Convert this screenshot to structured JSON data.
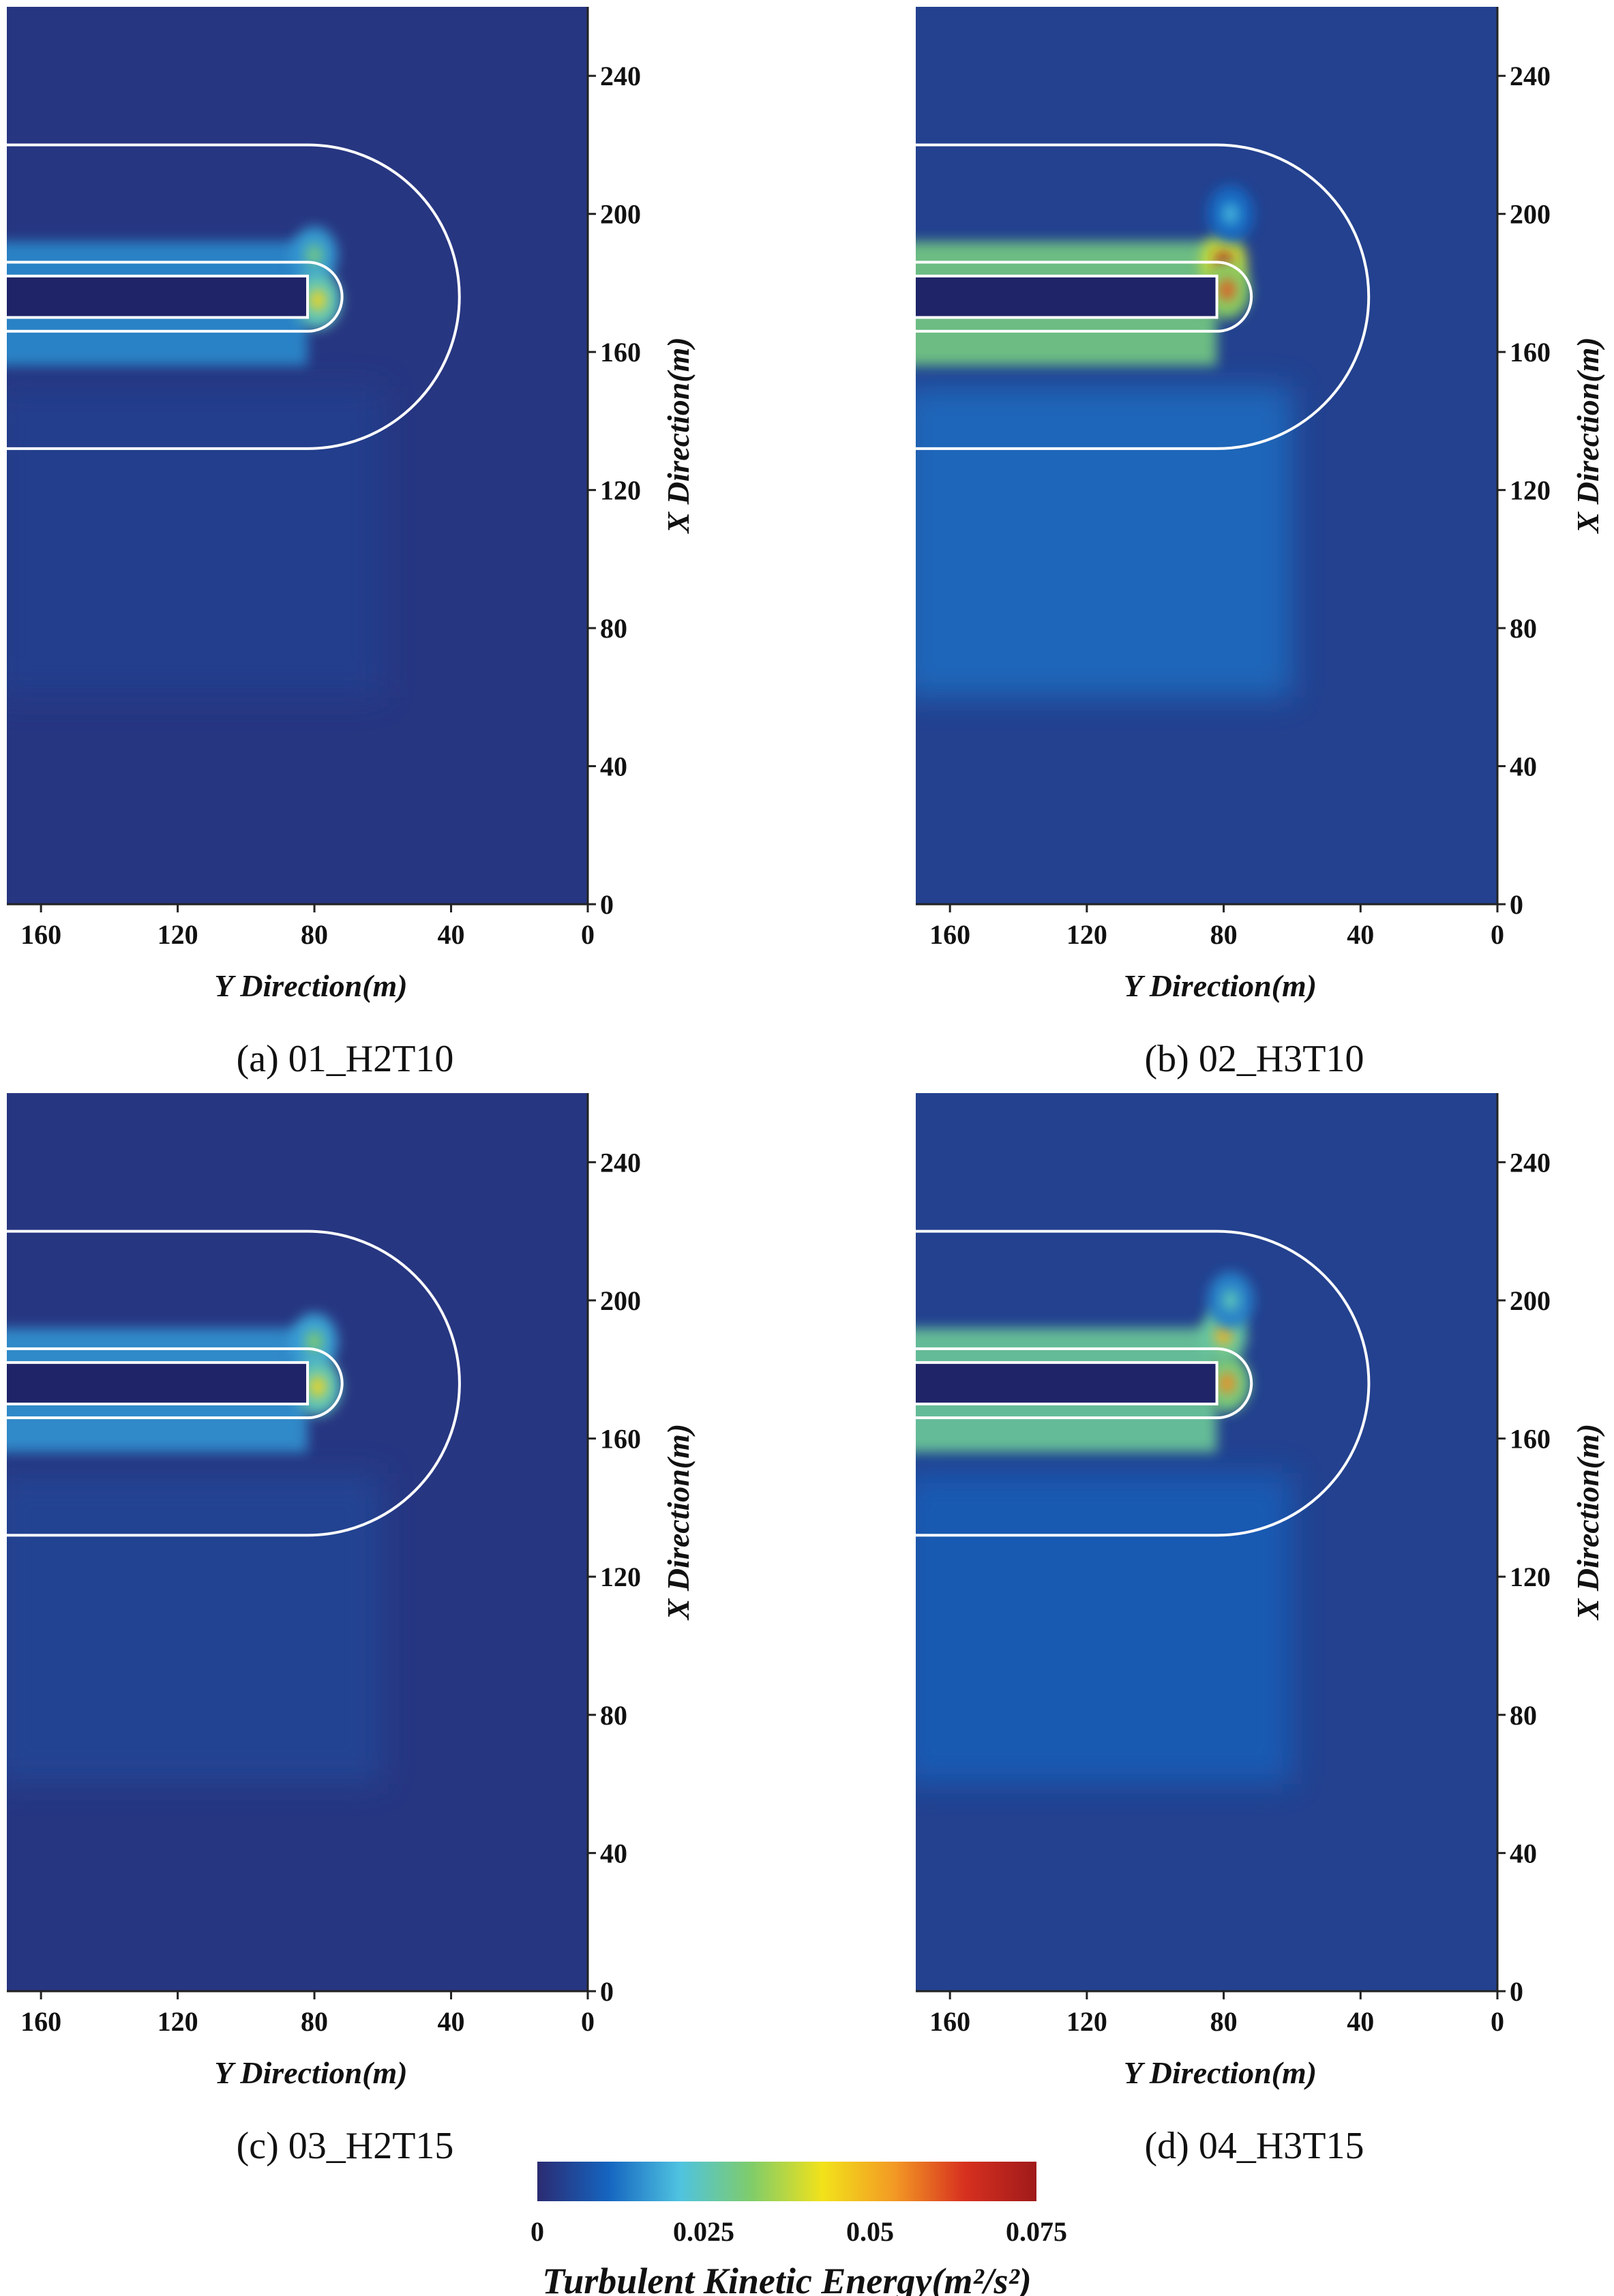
{
  "chart_data": [
    {
      "type": "heatmap",
      "caption": "(a)  01_H2T10",
      "xlabel": "Y Direction(m)",
      "ylabel": "X Direction(m)",
      "x_axis_reversed": true,
      "xlim": [
        170,
        0
      ],
      "ylim": [
        0,
        260
      ],
      "xticks": [
        160,
        120,
        80,
        40,
        0
      ],
      "yticks": [
        0,
        40,
        80,
        120,
        160,
        200,
        240
      ],
      "variable": "Turbulent Kinetic Energy",
      "background_tke": 0.002,
      "hotspots": [
        {
          "x": 80,
          "y": 188,
          "tke": 0.03
        },
        {
          "x": 79,
          "y": 175,
          "tke": 0.045
        }
      ],
      "wake_band_tke": 0.015,
      "lower_band_tke": 0.004,
      "structure": {
        "breakwater": {
          "x_start": 170,
          "x_end": 82,
          "y_bottom": 170,
          "y_top": 182
        },
        "inner_outline": {
          "x_start": 170,
          "x_end": 82,
          "y_bottom": 166,
          "y_top": 186
        },
        "outer_outline": {
          "x_start": 170,
          "x_end": 82,
          "y_bottom": 132,
          "y_top": 220
        }
      }
    },
    {
      "type": "heatmap",
      "caption": "(b)  02_H3T10",
      "xlabel": "Y Direction(m)",
      "ylabel": "X Direction(m)",
      "x_axis_reversed": true,
      "xlim": [
        170,
        0
      ],
      "ylim": [
        0,
        260
      ],
      "xticks": [
        160,
        120,
        80,
        40,
        0
      ],
      "yticks": [
        0,
        40,
        80,
        120,
        160,
        200,
        240
      ],
      "variable": "Turbulent Kinetic Energy",
      "background_tke": 0.004,
      "hotspots": [
        {
          "x": 80,
          "y": 186,
          "tke": 0.07
        },
        {
          "x": 79,
          "y": 178,
          "tke": 0.06
        },
        {
          "x": 78,
          "y": 200,
          "tke": 0.02
        }
      ],
      "wake_band_tke": 0.03,
      "lower_band_tke": 0.012,
      "structure": {
        "breakwater": {
          "x_start": 170,
          "x_end": 82,
          "y_bottom": 170,
          "y_top": 182
        },
        "inner_outline": {
          "x_start": 170,
          "x_end": 82,
          "y_bottom": 166,
          "y_top": 186
        },
        "outer_outline": {
          "x_start": 170,
          "x_end": 82,
          "y_bottom": 132,
          "y_top": 220
        }
      }
    },
    {
      "type": "heatmap",
      "caption": "(c)  03_H2T15",
      "xlabel": "Y Direction(m)",
      "ylabel": "X Direction(m)",
      "x_axis_reversed": true,
      "xlim": [
        170,
        0
      ],
      "ylim": [
        0,
        260
      ],
      "xticks": [
        160,
        120,
        80,
        40,
        0
      ],
      "yticks": [
        0,
        40,
        80,
        120,
        160,
        200,
        240
      ],
      "variable": "Turbulent Kinetic Energy",
      "background_tke": 0.002,
      "hotspots": [
        {
          "x": 80,
          "y": 188,
          "tke": 0.032
        },
        {
          "x": 79,
          "y": 175,
          "tke": 0.045
        }
      ],
      "wake_band_tke": 0.016,
      "lower_band_tke": 0.005,
      "structure": {
        "breakwater": {
          "x_start": 170,
          "x_end": 82,
          "y_bottom": 170,
          "y_top": 182
        },
        "inner_outline": {
          "x_start": 170,
          "x_end": 82,
          "y_bottom": 166,
          "y_top": 186
        },
        "outer_outline": {
          "x_start": 170,
          "x_end": 82,
          "y_bottom": 132,
          "y_top": 220
        }
      }
    },
    {
      "type": "heatmap",
      "caption": "(d)  04_H3T15",
      "xlabel": "Y Direction(m)",
      "ylabel": "X Direction(m)",
      "x_axis_reversed": true,
      "xlim": [
        170,
        0
      ],
      "ylim": [
        0,
        260
      ],
      "xticks": [
        160,
        120,
        80,
        40,
        0
      ],
      "yticks": [
        0,
        40,
        80,
        120,
        160,
        200,
        240
      ],
      "variable": "Turbulent Kinetic Energy",
      "background_tke": 0.004,
      "hotspots": [
        {
          "x": 80,
          "y": 190,
          "tke": 0.05
        },
        {
          "x": 79,
          "y": 176,
          "tke": 0.055
        },
        {
          "x": 78,
          "y": 200,
          "tke": 0.025
        }
      ],
      "wake_band_tke": 0.028,
      "lower_band_tke": 0.01,
      "structure": {
        "breakwater": {
          "x_start": 170,
          "x_end": 82,
          "y_bottom": 170,
          "y_top": 182
        },
        "inner_outline": {
          "x_start": 170,
          "x_end": 82,
          "y_bottom": 166,
          "y_top": 186
        },
        "outer_outline": {
          "x_start": 170,
          "x_end": 82,
          "y_bottom": 132,
          "y_top": 220
        }
      }
    }
  ],
  "colorbar": {
    "title": "Turbulent Kinetic Energy(m²/s²)",
    "range": [
      0,
      0.075
    ],
    "tick_labels": [
      "0",
      "0.025",
      "0.05",
      "0.075"
    ],
    "tick_values": [
      0,
      0.025,
      0.05,
      0.075
    ],
    "colors": [
      "#2b2b72",
      "#1565c0",
      "#4fc3e0",
      "#7fcc6a",
      "#f2e21a",
      "#f39a24",
      "#d7301f",
      "#a01a1a"
    ]
  },
  "palette": {
    "background": "#2a2f80",
    "structure_fill": "#1f2468",
    "outline": "#ffffff"
  }
}
